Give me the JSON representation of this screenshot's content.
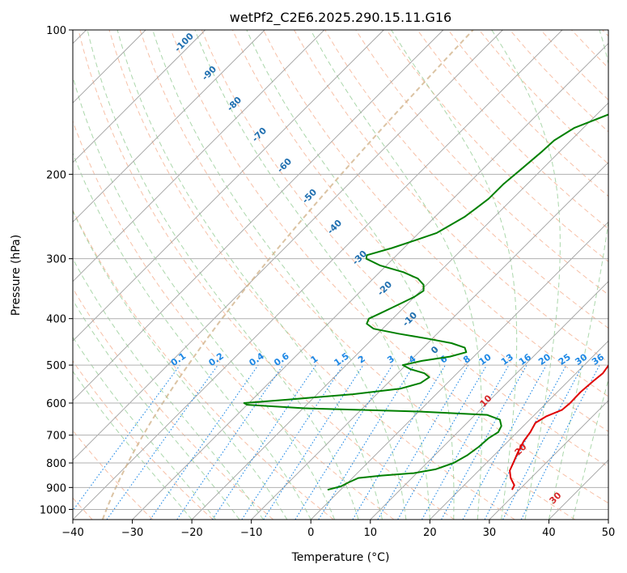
{
  "chart_data": {
    "type": "line",
    "title": "wetPf2_C2E6.2025.290.15.11.G16",
    "xlabel": "Temperature (°C)",
    "ylabel": "Pressure (hPa)",
    "xlim": [
      -40,
      50
    ],
    "ylim": [
      1050,
      100
    ],
    "x_ticks": [
      -40,
      -30,
      -20,
      -10,
      0,
      10,
      20,
      30,
      40,
      50
    ],
    "y_ticks": [
      100,
      200,
      300,
      400,
      500,
      600,
      700,
      800,
      900,
      1000
    ],
    "grid": true,
    "colors": {
      "temperature": "#e00000",
      "dewpoint": "#008000",
      "isotherm": "#a0a0a0",
      "dry_adiabat": "#f4a582",
      "moist_adiabat": "#8fc98f",
      "mixing_ratio": "#1e88e5",
      "wet_bulb_zero": "#d2b48c",
      "moist_label": "#1f6fb0",
      "dry_label": "#d62728"
    },
    "series": [
      {
        "name": "Temperature",
        "points": [
          {
            "p": 910,
            "t": 28.8
          },
          {
            "p": 890,
            "t": 28.4
          },
          {
            "p": 860,
            "t": 26.6
          },
          {
            "p": 830,
            "t": 25.2
          },
          {
            "p": 800,
            "t": 24.5
          },
          {
            "p": 760,
            "t": 23.5
          },
          {
            "p": 720,
            "t": 22.6
          },
          {
            "p": 690,
            "t": 22.2
          },
          {
            "p": 660,
            "t": 21.5
          },
          {
            "p": 640,
            "t": 22.2
          },
          {
            "p": 620,
            "t": 23.8
          },
          {
            "p": 600,
            "t": 24.0
          },
          {
            "p": 570,
            "t": 23.9
          },
          {
            "p": 540,
            "t": 24.2
          },
          {
            "p": 520,
            "t": 24.5
          },
          {
            "p": 500,
            "t": 24.1
          },
          {
            "p": 480,
            "t": 23.2
          },
          {
            "p": 460,
            "t": 22.0
          },
          {
            "p": 440,
            "t": 21.0
          },
          {
            "p": 420,
            "t": 20.8
          },
          {
            "p": 400,
            "t": 20.5
          },
          {
            "p": 370,
            "t": 19.0
          },
          {
            "p": 340,
            "t": 16.5
          },
          {
            "p": 300,
            "t": 13.0
          },
          {
            "p": 260,
            "t": 9.5
          },
          {
            "p": 230,
            "t": 6.5
          },
          {
            "p": 200,
            "t": 3.5
          },
          {
            "p": 180,
            "t": 0.5
          },
          {
            "p": 160,
            "t": -1.5
          },
          {
            "p": 145,
            "t": -3.0
          },
          {
            "p": 130,
            "t": -4.2
          },
          {
            "p": 120,
            "t": -4.0
          },
          {
            "p": 113,
            "t": -2.5
          },
          {
            "p": 106,
            "t": -0.8
          },
          {
            "p": 100,
            "t": -0.5
          }
        ]
      },
      {
        "name": "Dewpoint",
        "points": [
          {
            "p": 910,
            "t": -2.2
          },
          {
            "p": 895,
            "t": -0.5
          },
          {
            "p": 880,
            "t": 0.0
          },
          {
            "p": 860,
            "t": 1.0
          },
          {
            "p": 850,
            "t": 4.5
          },
          {
            "p": 840,
            "t": 9.5
          },
          {
            "p": 825,
            "t": 12.5
          },
          {
            "p": 800,
            "t": 14.5
          },
          {
            "p": 770,
            "t": 15.5
          },
          {
            "p": 740,
            "t": 16.0
          },
          {
            "p": 710,
            "t": 16.2
          },
          {
            "p": 690,
            "t": 16.8
          },
          {
            "p": 670,
            "t": 16.3
          },
          {
            "p": 650,
            "t": 15.0
          },
          {
            "p": 635,
            "t": 12.0
          },
          {
            "p": 625,
            "t": 0.0
          },
          {
            "p": 615,
            "t": -20.0
          },
          {
            "p": 605,
            "t": -30.0
          },
          {
            "p": 600,
            "t": -30.8
          },
          {
            "p": 590,
            "t": -24.0
          },
          {
            "p": 575,
            "t": -14.0
          },
          {
            "p": 560,
            "t": -7.0
          },
          {
            "p": 545,
            "t": -4.5
          },
          {
            "p": 530,
            "t": -4.0
          },
          {
            "p": 520,
            "t": -5.5
          },
          {
            "p": 510,
            "t": -8.5
          },
          {
            "p": 500,
            "t": -10.5
          },
          {
            "p": 490,
            "t": -8.0
          },
          {
            "p": 480,
            "t": -4.0
          },
          {
            "p": 470,
            "t": -2.0
          },
          {
            "p": 460,
            "t": -3.0
          },
          {
            "p": 450,
            "t": -6.0
          },
          {
            "p": 440,
            "t": -11.0
          },
          {
            "p": 430,
            "t": -16.5
          },
          {
            "p": 420,
            "t": -21.5
          },
          {
            "p": 410,
            "t": -23.5
          },
          {
            "p": 400,
            "t": -24.0
          },
          {
            "p": 390,
            "t": -23.0
          },
          {
            "p": 380,
            "t": -22.0
          },
          {
            "p": 370,
            "t": -21.0
          },
          {
            "p": 360,
            "t": -20.0
          },
          {
            "p": 350,
            "t": -19.5
          },
          {
            "p": 340,
            "t": -20.5
          },
          {
            "p": 330,
            "t": -22.5
          },
          {
            "p": 320,
            "t": -26.0
          },
          {
            "p": 310,
            "t": -31.0
          },
          {
            "p": 300,
            "t": -34.5
          },
          {
            "p": 295,
            "t": -35.0
          },
          {
            "p": 285,
            "t": -32.0
          },
          {
            "p": 275,
            "t": -29.5
          },
          {
            "p": 265,
            "t": -27.0
          },
          {
            "p": 255,
            "t": -26.0
          },
          {
            "p": 245,
            "t": -25.0
          },
          {
            "p": 235,
            "t": -24.5
          },
          {
            "p": 225,
            "t": -24.0
          },
          {
            "p": 210,
            "t": -24.0
          },
          {
            "p": 195,
            "t": -23.5
          },
          {
            "p": 180,
            "t": -23.0
          },
          {
            "p": 170,
            "t": -22.8
          },
          {
            "p": 160,
            "t": -21.5
          },
          {
            "p": 150,
            "t": -18.0
          },
          {
            "p": 140,
            "t": -15.0
          },
          {
            "p": 130,
            "t": -12.0
          },
          {
            "p": 120,
            "t": -10.5
          },
          {
            "p": 113,
            "t": -9.0
          },
          {
            "p": 107,
            "t": -6.0
          },
          {
            "p": 103,
            "t": -4.0
          },
          {
            "p": 100,
            "t": -3.8
          }
        ]
      }
    ],
    "mixing_ratio_labels": [
      "0.1",
      "0.2",
      "0.4",
      "0.6",
      "1",
      "1.5",
      "2",
      "3",
      "4",
      "6",
      "8",
      "10",
      "13",
      "16",
      "20",
      "25",
      "30",
      "36"
    ],
    "moist_adiabat_labels": [
      "-100",
      "-90",
      "-80",
      "-70",
      "-60",
      "-50",
      "-40",
      "-30",
      "-20",
      "-10",
      "0"
    ],
    "dry_adiabat_labels": [
      "10",
      "20",
      "30",
      "40"
    ]
  }
}
